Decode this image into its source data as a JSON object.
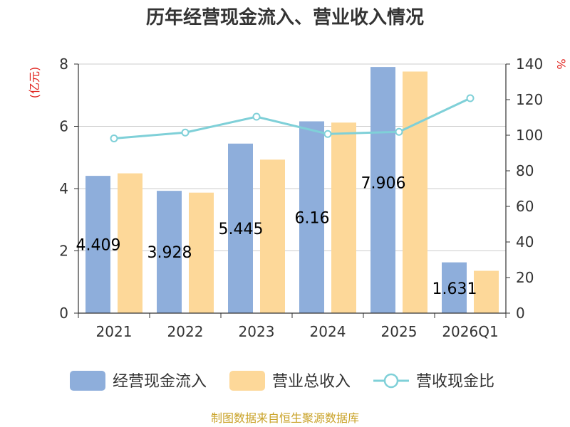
{
  "chart_data": {
    "type": "bar",
    "title": "历年经营现金流入、营业收入情况",
    "categories": [
      "2021",
      "2022",
      "2023",
      "2024",
      "2025",
      "2026Q1"
    ],
    "y_left": {
      "label": "(亿元)",
      "range": [
        0,
        8
      ],
      "ticks": [
        "0",
        "2",
        "4",
        "6",
        "8"
      ]
    },
    "y_right": {
      "label": "%",
      "range": [
        0,
        140
      ],
      "ticks": [
        "0",
        "20",
        "40",
        "60",
        "80",
        "100",
        "120",
        "140"
      ]
    },
    "series": [
      {
        "name": "经营现金流入",
        "kind": "bar",
        "axis": "left",
        "color": "#8eaedb",
        "values": [
          4.409,
          3.928,
          5.445,
          6.16,
          7.906,
          1.631
        ],
        "labels": [
          "4.409",
          "3.928",
          "5.445",
          "6.16",
          "7.906",
          "1.631"
        ]
      },
      {
        "name": "营业总收入",
        "kind": "bar",
        "axis": "left",
        "color": "#fdd899",
        "values": [
          4.49,
          3.87,
          4.93,
          6.12,
          7.76,
          1.36
        ]
      },
      {
        "name": "营收现金比",
        "kind": "line",
        "axis": "right",
        "color": "#7fd0d8",
        "values": [
          98.2,
          101.5,
          110.4,
          100.7,
          101.9,
          120.8
        ]
      }
    ],
    "grid": true,
    "legend": "bottom"
  },
  "footer": {
    "source": "制图数据来自恒生聚源数据库"
  }
}
